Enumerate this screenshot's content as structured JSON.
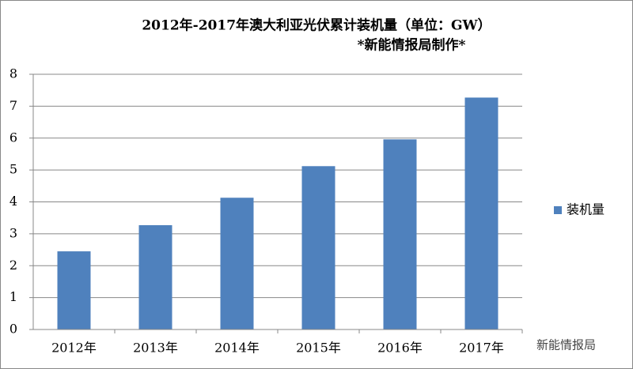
{
  "chart_data": {
    "type": "bar",
    "title": "2012年-2017年澳大利亚光伏累计装机量（单位：GW）",
    "subtitle": "*新能情报局制作*",
    "categories": [
      "2012年",
      "2013年",
      "2014年",
      "2015年",
      "2016年",
      "2017年"
    ],
    "series": [
      {
        "name": "装机量",
        "color": "#4f81bd",
        "values": [
          2.45,
          3.27,
          4.13,
          5.12,
          5.96,
          7.27
        ]
      }
    ],
    "ylim": [
      0,
      8
    ],
    "yticks": [
      0,
      1,
      2,
      3,
      4,
      5,
      6,
      7,
      8
    ],
    "grid": true,
    "legend": "right",
    "watermark": "新能情报局"
  }
}
